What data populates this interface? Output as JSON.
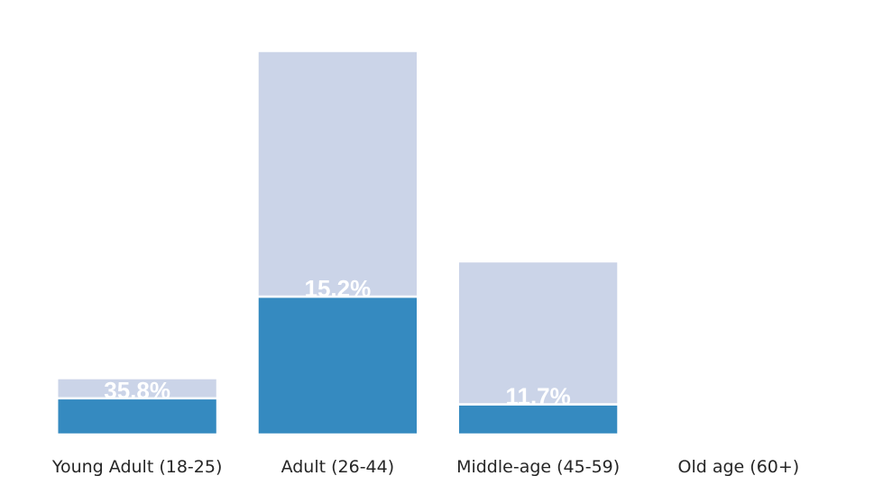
{
  "chart_data": {
    "type": "bar",
    "stacked": true,
    "categories": [
      "Young Adult (18-25)",
      "Adult (26-44)",
      "Middle-age (45-59)",
      "Old age (60+)"
    ],
    "series": [
      {
        "values": [
          360,
          1370,
          300,
          0
        ]
      },
      {
        "values": [
          200,
          2440,
          1420,
          2
        ]
      }
    ],
    "labels": [
      "35.8%",
      "15.2%",
      "11.7%",
      ""
    ],
    "colors": {
      "lower": "#358ac0",
      "upper": "#cbd4e8",
      "bar_edge": "#ffffff"
    },
    "ylim": [
      0,
      3940
    ],
    "grid": false,
    "legend": "none"
  }
}
